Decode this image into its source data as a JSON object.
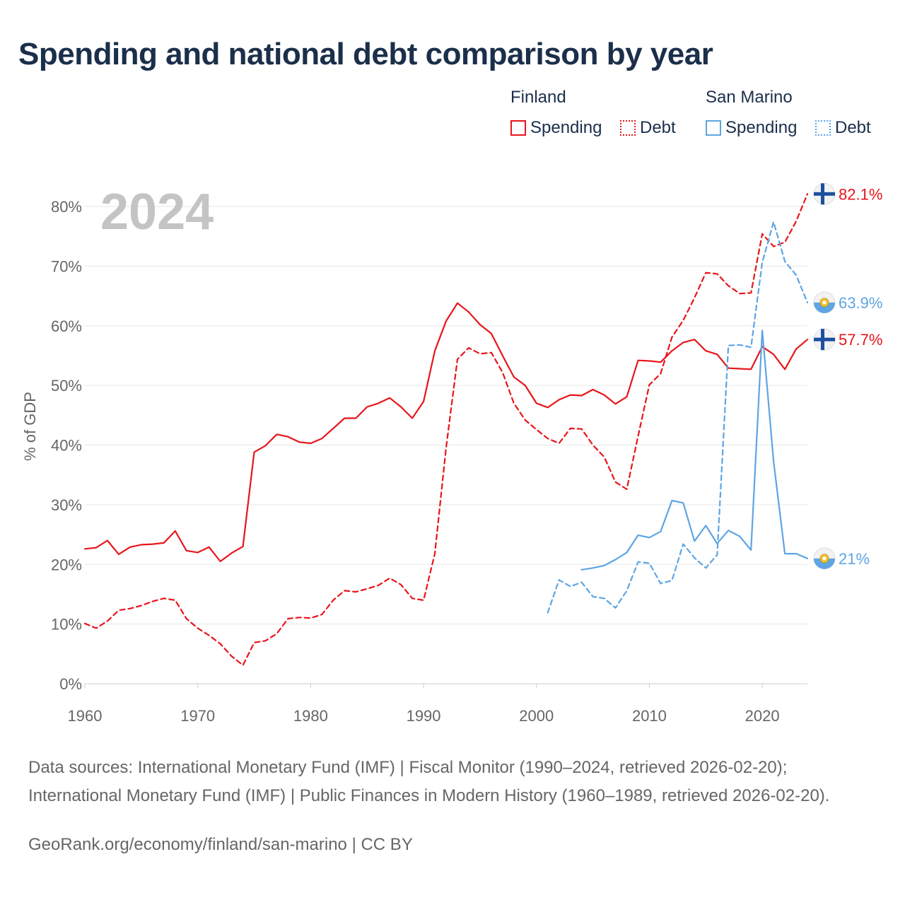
{
  "title": "Spending and national debt comparison by year",
  "legend": {
    "groups": [
      {
        "country": "Finland",
        "items": [
          "Spending",
          "Debt"
        ]
      },
      {
        "country": "San Marino",
        "items": [
          "Spending",
          "Debt"
        ]
      }
    ]
  },
  "colors": {
    "finland": "#e8151b",
    "san_marino": "#5ea5e3",
    "grid": "#e6e6e6",
    "year_watermark": "#c4c4c4"
  },
  "year_label": "2024",
  "footer": {
    "sources": "Data sources: International Monetary Fund (IMF) | Fiscal Monitor (1990–2024, retrieved 2026-02-20); International Monetary Fund (IMF) | Public Finances in Modern History (1960–1989, retrieved 2026-02-20).",
    "credit": "GeoRank.org/economy/finland/san-marino | CC BY"
  },
  "chart_data": {
    "type": "line",
    "ylabel": "% of GDP",
    "xlabel": "",
    "xlim": [
      1960,
      2024
    ],
    "ylim": [
      0,
      80
    ],
    "x_ticks": [
      "1960",
      "1970",
      "1980",
      "1990",
      "2000",
      "2010",
      "2020"
    ],
    "y_ticks": [
      "0%",
      "10%",
      "20%",
      "30%",
      "40%",
      "50%",
      "60%",
      "70%",
      "80%"
    ],
    "series": [
      {
        "name": "Finland Spending",
        "country": "Finland",
        "style": "solid",
        "end_label": "57.7%",
        "flag": "finland",
        "x": [
          1960,
          1961,
          1962,
          1963,
          1964,
          1965,
          1966,
          1967,
          1968,
          1969,
          1970,
          1971,
          1972,
          1973,
          1974,
          1975,
          1976,
          1977,
          1978,
          1979,
          1980,
          1981,
          1982,
          1983,
          1984,
          1985,
          1986,
          1987,
          1988,
          1989,
          1990,
          1991,
          1992,
          1993,
          1994,
          1995,
          1996,
          1997,
          1998,
          1999,
          2000,
          2001,
          2002,
          2003,
          2004,
          2005,
          2006,
          2007,
          2008,
          2009,
          2010,
          2011,
          2012,
          2013,
          2014,
          2015,
          2016,
          2017,
          2018,
          2019,
          2020,
          2021,
          2022,
          2023,
          2024
        ],
        "values": [
          22.6,
          22.8,
          24.0,
          21.7,
          22.9,
          23.3,
          23.4,
          23.6,
          25.6,
          22.3,
          22.0,
          22.9,
          20.5,
          21.9,
          23.0,
          38.8,
          39.9,
          41.8,
          41.4,
          40.5,
          40.3,
          41.1,
          42.8,
          44.5,
          44.5,
          46.4,
          47.0,
          47.9,
          46.4,
          44.5,
          47.3,
          55.8,
          60.8,
          63.8,
          62.3,
          60.2,
          58.7,
          55.0,
          51.4,
          50.0,
          47.0,
          46.3,
          47.6,
          48.4,
          48.3,
          49.3,
          48.4,
          46.9,
          48.1,
          54.2,
          54.1,
          53.9,
          55.8,
          57.2,
          57.7,
          55.8,
          55.2,
          52.9,
          52.8,
          52.7,
          56.5,
          55.2,
          52.7,
          56.1,
          57.7
        ]
      },
      {
        "name": "Finland Debt",
        "country": "Finland",
        "style": "dashed",
        "end_label": "82.1%",
        "flag": "finland",
        "x": [
          1960,
          1961,
          1962,
          1963,
          1964,
          1965,
          1966,
          1967,
          1968,
          1969,
          1970,
          1971,
          1972,
          1973,
          1974,
          1975,
          1976,
          1977,
          1978,
          1979,
          1980,
          1981,
          1982,
          1983,
          1984,
          1985,
          1986,
          1987,
          1988,
          1989,
          1990,
          1991,
          1992,
          1993,
          1994,
          1995,
          1996,
          1997,
          1998,
          1999,
          2000,
          2001,
          2002,
          2003,
          2004,
          2005,
          2006,
          2007,
          2008,
          2009,
          2010,
          2011,
          2012,
          2013,
          2014,
          2015,
          2016,
          2017,
          2018,
          2019,
          2020,
          2021,
          2022,
          2023,
          2024
        ],
        "values": [
          10.1,
          9.3,
          10.5,
          12.3,
          12.6,
          13.1,
          13.8,
          14.3,
          14.0,
          10.9,
          9.3,
          8.1,
          6.7,
          4.6,
          3.1,
          6.9,
          7.2,
          8.4,
          10.9,
          11.1,
          11.0,
          11.6,
          14.0,
          15.6,
          15.4,
          15.9,
          16.5,
          17.7,
          16.6,
          14.3,
          14.0,
          21.8,
          39.6,
          54.4,
          56.3,
          55.3,
          55.5,
          52.2,
          47.0,
          44.2,
          42.6,
          41.1,
          40.3,
          42.8,
          42.7,
          40.0,
          38.0,
          33.8,
          32.6,
          41.5,
          50.1,
          52.0,
          58.1,
          60.9,
          64.7,
          68.9,
          68.7,
          66.7,
          65.4,
          65.5,
          75.4,
          73.3,
          74.0,
          77.5,
          82.1
        ]
      },
      {
        "name": "San Marino Spending",
        "country": "San Marino",
        "style": "solid",
        "end_label": "21%",
        "flag": "san_marino",
        "x": [
          2004,
          2005,
          2006,
          2007,
          2008,
          2009,
          2010,
          2011,
          2012,
          2013,
          2014,
          2015,
          2016,
          2017,
          2018,
          2019,
          2020,
          2021,
          2022,
          2023,
          2024
        ],
        "values": [
          19.1,
          19.4,
          19.8,
          20.8,
          22.0,
          24.9,
          24.5,
          25.5,
          30.7,
          30.3,
          23.9,
          26.5,
          23.5,
          25.7,
          24.7,
          22.4,
          59.2,
          37.3,
          21.8,
          21.8,
          21.0
        ]
      },
      {
        "name": "San Marino Debt",
        "country": "San Marino",
        "style": "dashed",
        "end_label": "63.9%",
        "flag": "san_marino",
        "x": [
          2001,
          2002,
          2003,
          2004,
          2005,
          2006,
          2007,
          2008,
          2009,
          2010,
          2011,
          2012,
          2013,
          2014,
          2015,
          2016,
          2017,
          2018,
          2019,
          2020,
          2021,
          2022,
          2023,
          2024
        ],
        "values": [
          11.9,
          17.4,
          16.3,
          17.0,
          14.6,
          14.3,
          12.7,
          15.6,
          20.4,
          20.2,
          16.8,
          17.3,
          23.4,
          21.1,
          19.4,
          21.6,
          56.7,
          56.8,
          56.4,
          70.6,
          77.4,
          70.8,
          68.5,
          63.9
        ]
      }
    ]
  }
}
